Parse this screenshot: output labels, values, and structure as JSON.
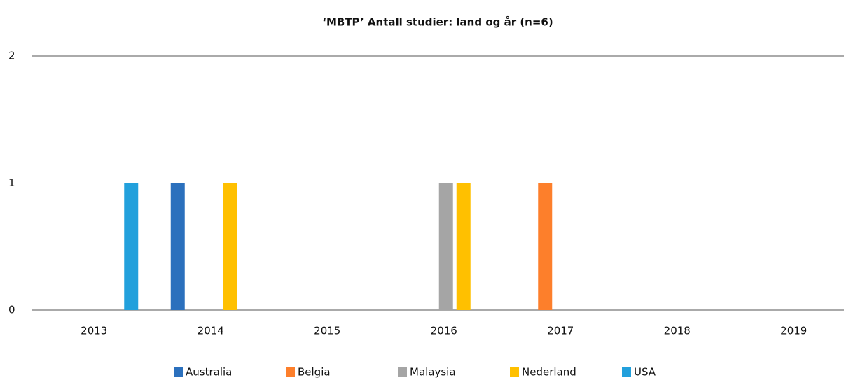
{
  "chart_data": {
    "type": "bar",
    "title": "‘MBTP’ Antall studier: land og år (n=6)",
    "categories": [
      "2013",
      "2014",
      "2015",
      "2016",
      "2017",
      "2018",
      "2019"
    ],
    "series": [
      {
        "name": "Australia",
        "color": "#2b70bd",
        "values": [
          0,
          1,
          0,
          0,
          0,
          0,
          0
        ]
      },
      {
        "name": "Belgia",
        "color": "#fd7f2b",
        "values": [
          0,
          0,
          0,
          0,
          1,
          0,
          0
        ]
      },
      {
        "name": "Malaysia",
        "color": "#a5a5a5",
        "values": [
          0,
          0,
          0,
          1,
          0,
          0,
          0
        ]
      },
      {
        "name": "Nederland",
        "color": "#ffc000",
        "values": [
          0,
          1,
          0,
          1,
          0,
          0,
          0
        ]
      },
      {
        "name": "USA",
        "color": "#22a0dc",
        "values": [
          1,
          0,
          0,
          0,
          0,
          0,
          0
        ]
      }
    ],
    "ylim": [
      0,
      2
    ],
    "yticks": [
      0,
      1,
      2
    ],
    "grid": true,
    "legend": "bottom"
  }
}
